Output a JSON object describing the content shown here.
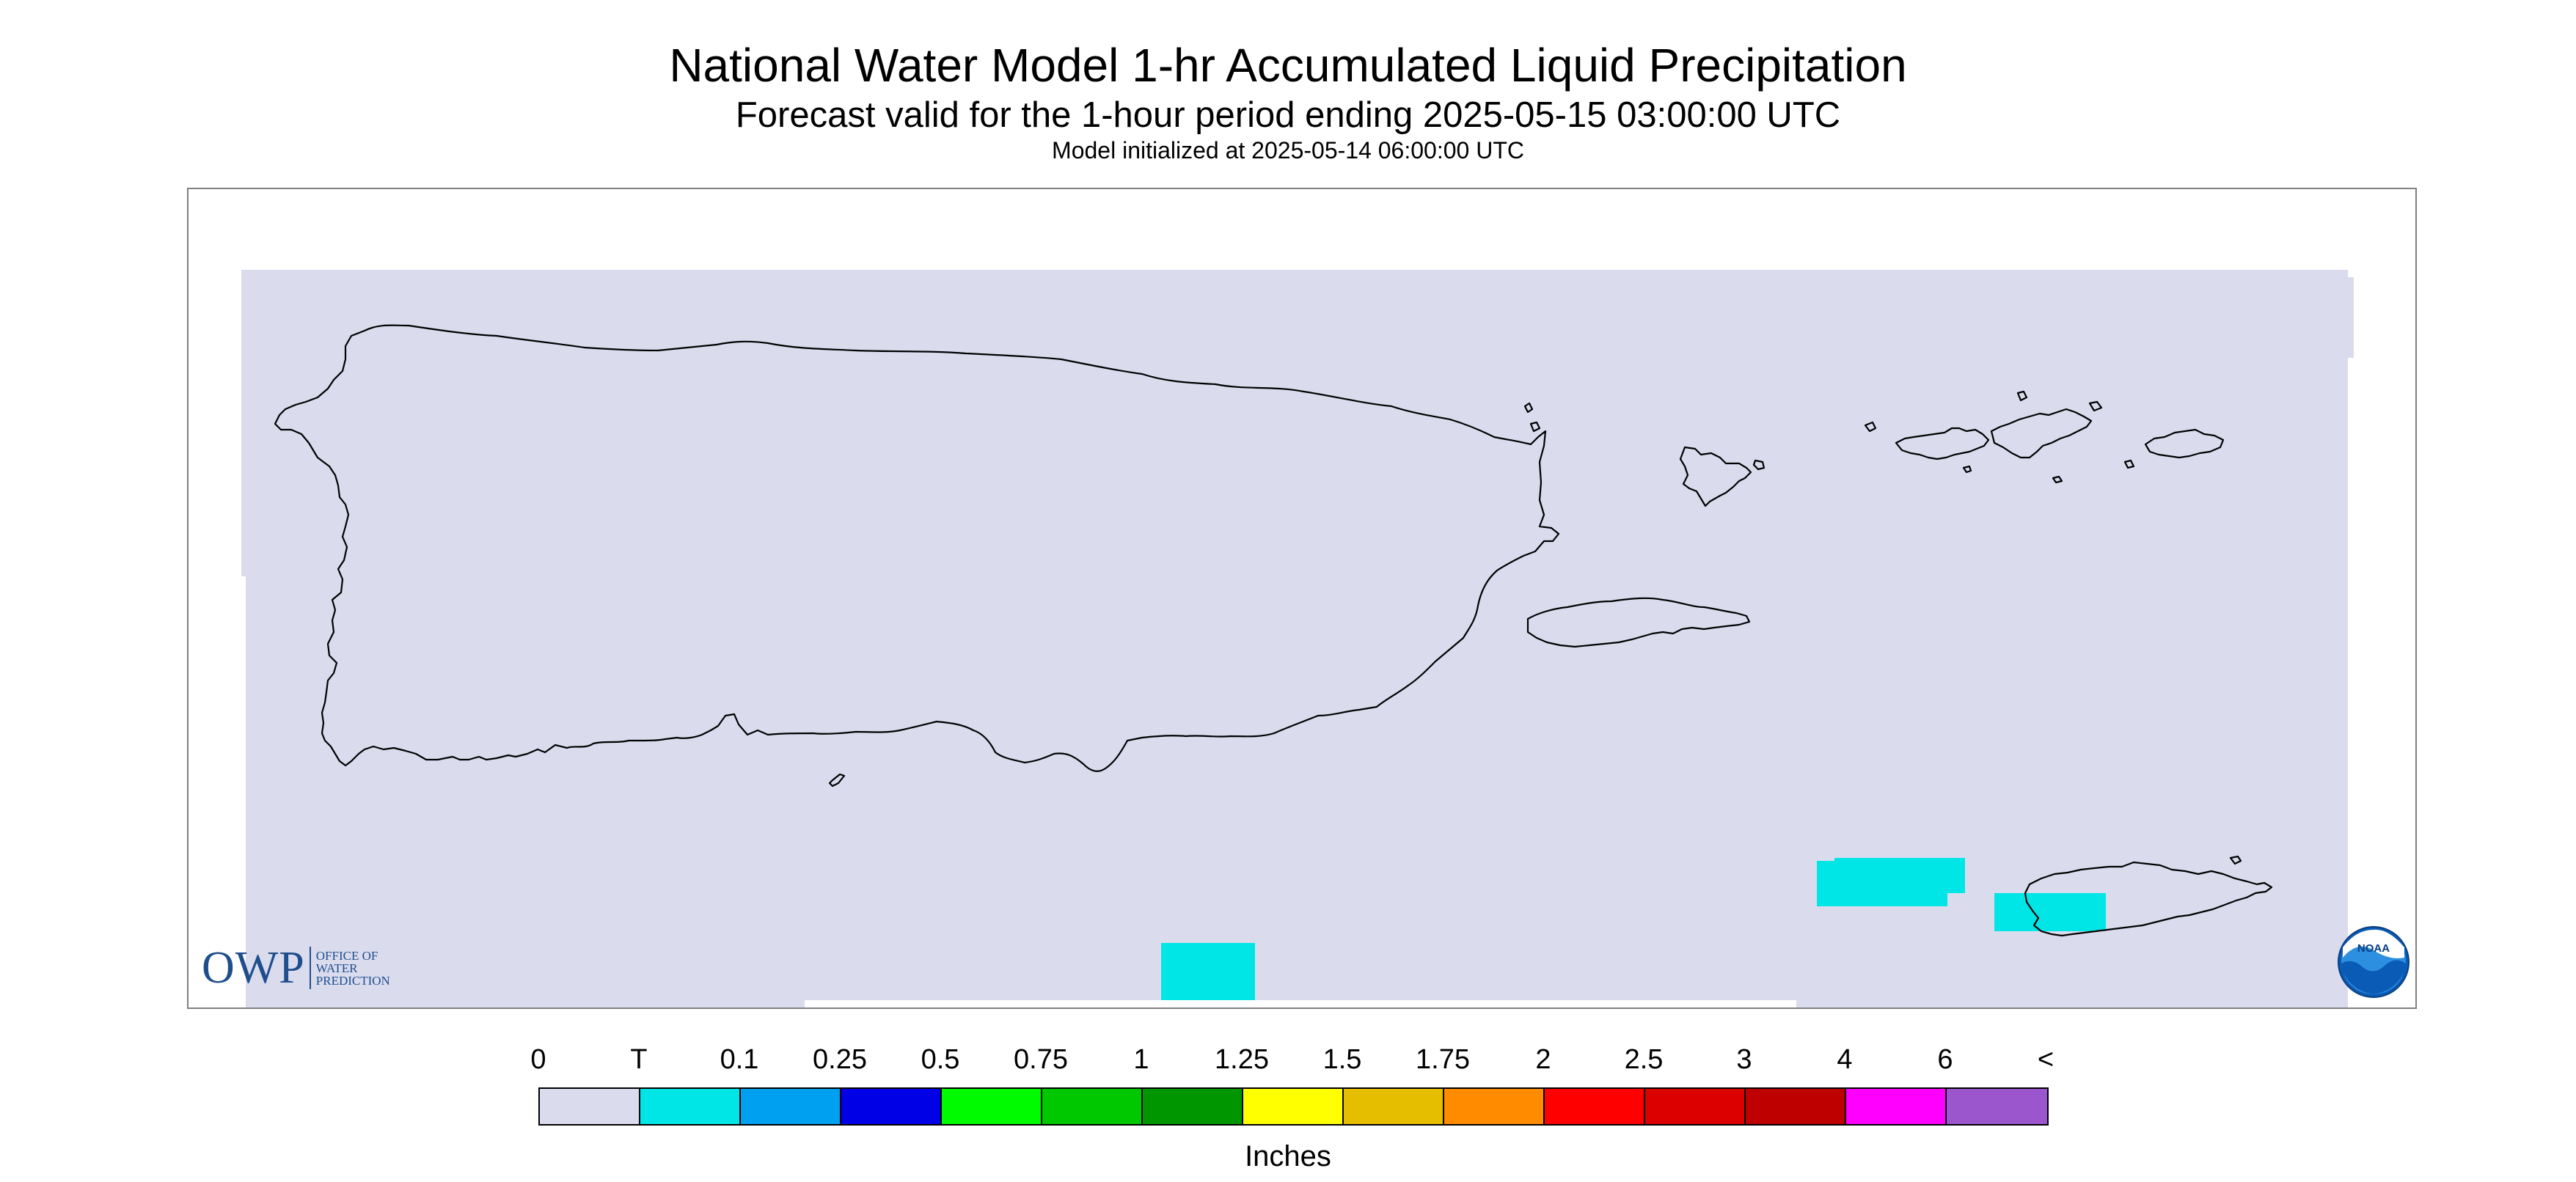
{
  "header": {
    "title": "National Water Model 1-hr Accumulated Liquid Precipitation",
    "subtitle": "Forecast valid for the 1-hour period ending 2025-05-15 03:00:00 UTC",
    "initialized": "Model initialized at 2025-05-14 06:00:00 UTC"
  },
  "map": {
    "background_color": "#dadcee",
    "coastline_color": "#000000",
    "precip_cells": [
      {
        "category": "T",
        "color": "#00e6e6"
      }
    ]
  },
  "logos": {
    "owp": {
      "letters": "OWP",
      "line1": "OFFICE OF",
      "line2": "WATER",
      "line3": "PREDICTION",
      "color": "#1f4e8c"
    },
    "noaa": {
      "text": "NOAA",
      "icon": "noaa-logo-icon"
    }
  },
  "legend": {
    "units": "Inches",
    "labels": [
      "0",
      "T",
      "0.1",
      "0.25",
      "0.5",
      "0.75",
      "1",
      "1.25",
      "1.5",
      "1.75",
      "2",
      "2.5",
      "3",
      "4",
      "6",
      "<"
    ],
    "colors": [
      "#dadcee",
      "#00e6e6",
      "#00a0f0",
      "#0000e6",
      "#00fa00",
      "#00c800",
      "#009600",
      "#ffff00",
      "#e6be00",
      "#ff8c00",
      "#ff0000",
      "#dc0000",
      "#be0000",
      "#ff00ff",
      "#9b55cd"
    ]
  }
}
